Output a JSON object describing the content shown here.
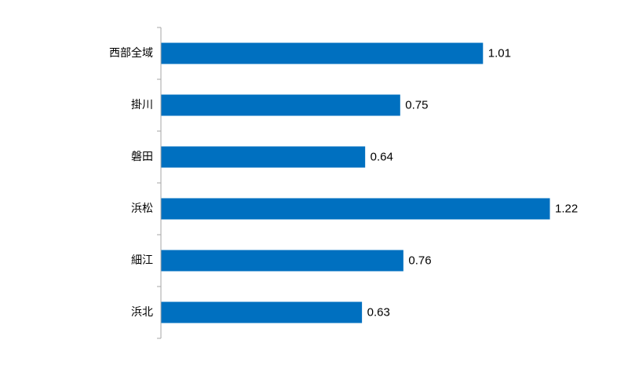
{
  "chart_data": {
    "type": "bar",
    "orientation": "horizontal",
    "categories": [
      "西部全域",
      "掛川",
      "磐田",
      "浜松",
      "細江",
      "浜北"
    ],
    "values": [
      1.01,
      0.75,
      0.64,
      1.22,
      0.76,
      0.63
    ],
    "data_labels": [
      "1.01",
      "0.75",
      "0.64",
      "1.22",
      "0.76",
      "0.63"
    ],
    "title": "",
    "xlabel": "",
    "ylabel": "",
    "xlim": [
      0,
      1.22
    ],
    "grid": false,
    "legend": "none",
    "bar_color": "#0070C0",
    "axis_color": "#A6A6A6"
  }
}
